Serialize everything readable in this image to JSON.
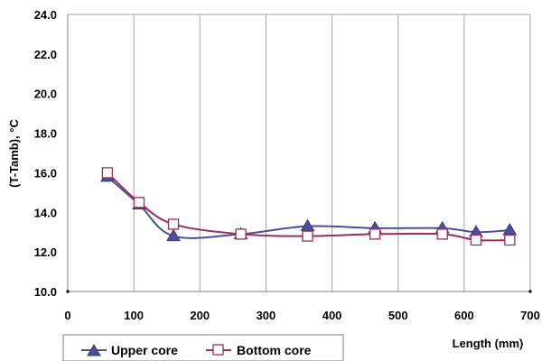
{
  "chart_data": {
    "type": "line",
    "xlabel": "Length (mm)",
    "ylabel": "(T-Tamb), °C",
    "xlim": [
      0,
      700
    ],
    "ylim": [
      10.0,
      24.0
    ],
    "x_ticks": [
      0,
      100,
      200,
      300,
      400,
      500,
      600,
      700
    ],
    "y_ticks": [
      "10.0",
      "12.0",
      "14.0",
      "16.0",
      "18.0",
      "20.0",
      "22.0",
      "24.0"
    ],
    "grid": "vertical",
    "legend_position": "bottom",
    "series": [
      {
        "name": "Upper core",
        "color": "#4B4F9A",
        "marker": "triangle",
        "x": [
          60,
          108,
          160,
          262,
          363,
          465,
          567,
          618,
          669
        ],
        "y": [
          15.8,
          14.4,
          12.8,
          12.9,
          13.3,
          13.2,
          13.2,
          13.0,
          13.1
        ]
      },
      {
        "name": "Bottom core",
        "color": "#9B2D5F",
        "marker": "square-open",
        "x": [
          60,
          108,
          160,
          262,
          363,
          465,
          567,
          618,
          669
        ],
        "y": [
          16.0,
          14.5,
          13.4,
          12.9,
          12.8,
          12.9,
          12.9,
          12.6,
          12.6
        ]
      }
    ]
  }
}
